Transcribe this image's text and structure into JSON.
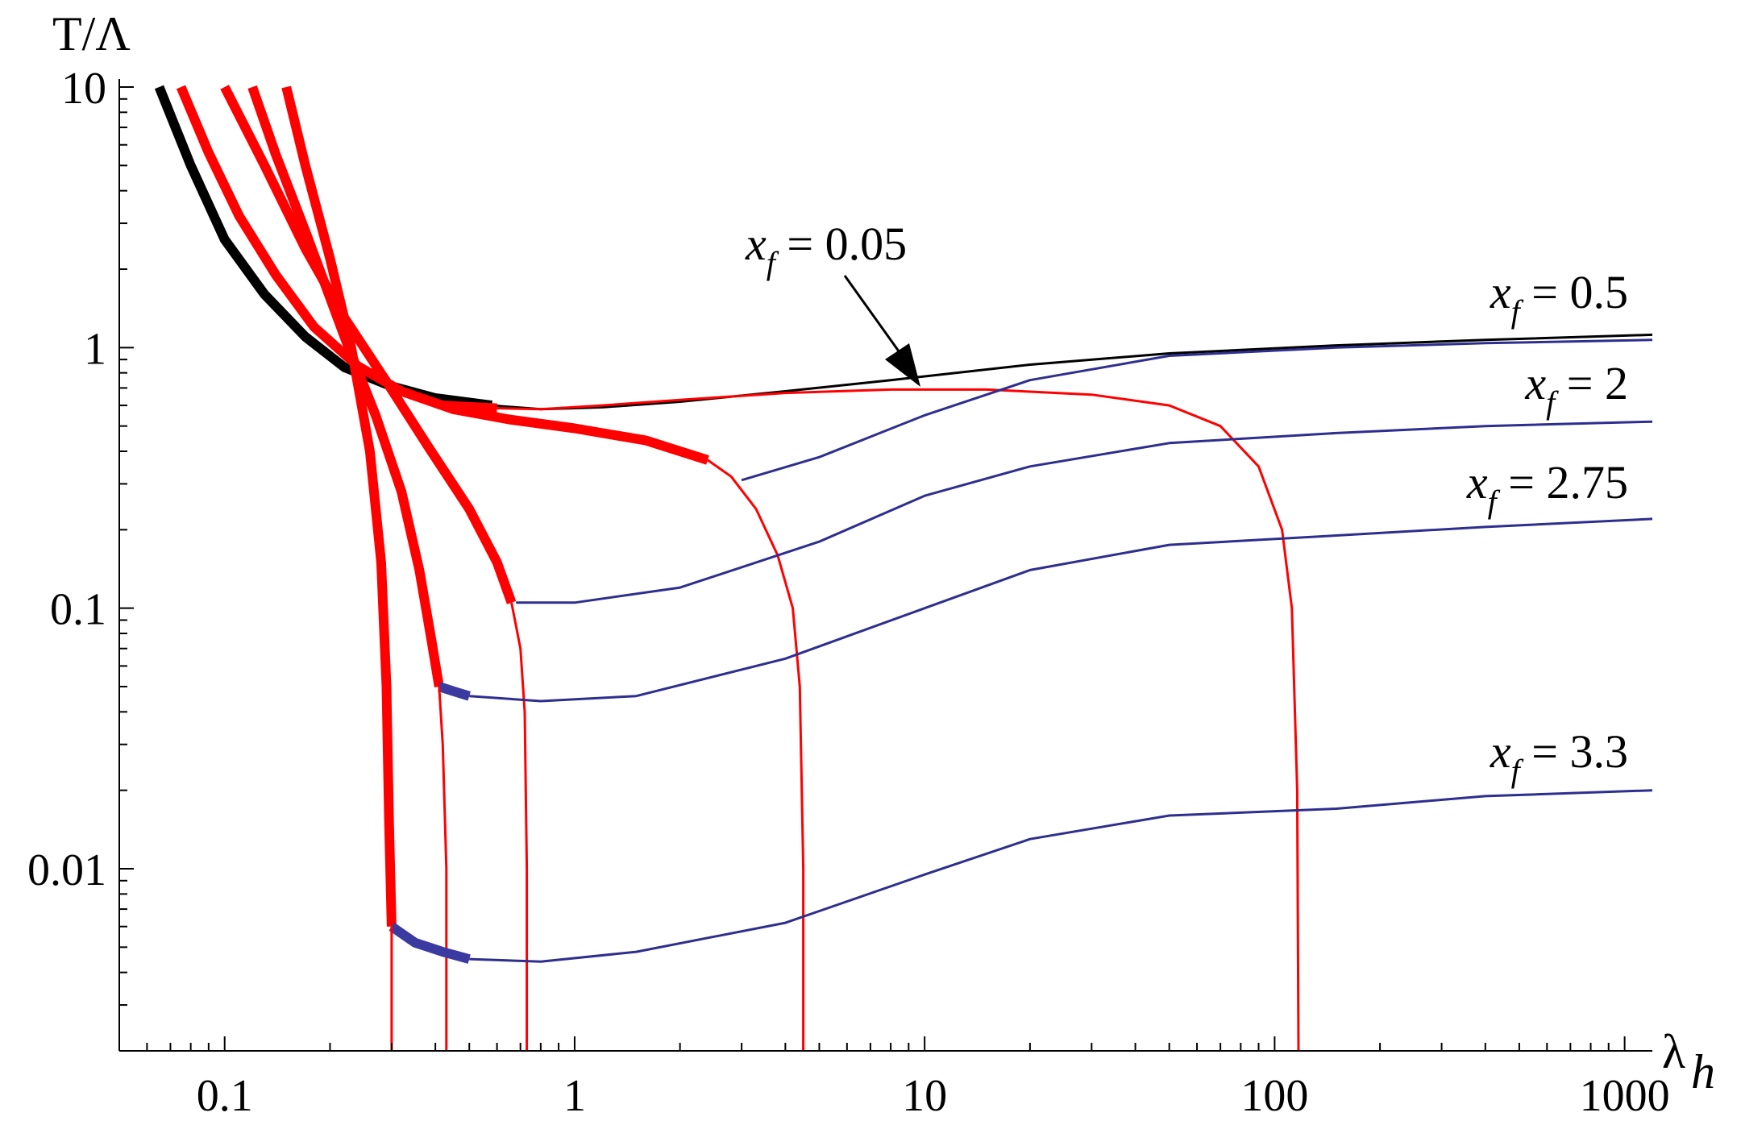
{
  "chart_data": {
    "type": "line",
    "title": "",
    "xlabel": "λ",
    "xlabel_sub": "h",
    "ylabel": "T/Λ",
    "xscale": "log",
    "yscale": "log",
    "xlim": [
      0.05,
      1200
    ],
    "ylim": [
      0.002,
      10
    ],
    "x_ticks": [
      {
        "value": 0.1,
        "label": "0.1"
      },
      {
        "value": 1,
        "label": "1"
      },
      {
        "value": 10,
        "label": "10"
      },
      {
        "value": 100,
        "label": "100"
      },
      {
        "value": 1000,
        "label": "1000"
      }
    ],
    "y_ticks": [
      {
        "value": 10,
        "label": "10"
      },
      {
        "value": 1,
        "label": "1"
      },
      {
        "value": 0.1,
        "label": "0.1"
      },
      {
        "value": 0.01,
        "label": "0.01"
      }
    ],
    "grid": false,
    "legend": "none",
    "colors": {
      "black": "#000000",
      "red": "#ff0000",
      "blue": "#2e2e8f",
      "blue_thick": "#3a3aa0"
    },
    "annotations": [
      {
        "label": "x",
        "sub": "f",
        "text": " = 0.05",
        "arrow": true
      },
      {
        "label": "x",
        "sub": "f",
        "text": " = 0.5"
      },
      {
        "label": "x",
        "sub": "f",
        "text": " = 2"
      },
      {
        "label": "x",
        "sub": "f",
        "text": " = 2.75"
      },
      {
        "label": "x",
        "sub": "f",
        "text": " = 3.3"
      }
    ],
    "series": [
      {
        "color": "black",
        "width": 12,
        "points": [
          [
            0.065,
            10
          ],
          [
            0.08,
            5
          ],
          [
            0.1,
            2.6
          ],
          [
            0.13,
            1.6
          ],
          [
            0.17,
            1.1
          ],
          [
            0.22,
            0.84
          ],
          [
            0.3,
            0.71
          ],
          [
            0.4,
            0.64
          ],
          [
            0.58,
            0.6
          ]
        ]
      },
      {
        "color": "black",
        "width": 3,
        "points": [
          [
            0.58,
            0.6
          ],
          [
            0.8,
            0.58
          ],
          [
            1.2,
            0.59
          ],
          [
            2,
            0.62
          ],
          [
            4,
            0.68
          ],
          [
            8,
            0.75
          ],
          [
            20,
            0.86
          ],
          [
            50,
            0.95
          ],
          [
            150,
            1.02
          ],
          [
            400,
            1.07
          ],
          [
            1200,
            1.12
          ]
        ]
      },
      {
        "color": "red",
        "width": 12,
        "points": [
          [
            0.075,
            10
          ],
          [
            0.09,
            5.6
          ],
          [
            0.11,
            3.2
          ],
          [
            0.14,
            1.9
          ],
          [
            0.18,
            1.2
          ],
          [
            0.24,
            0.85
          ],
          [
            0.32,
            0.68
          ],
          [
            0.45,
            0.58
          ],
          [
            0.65,
            0.53
          ],
          [
            1,
            0.49
          ],
          [
            1.6,
            0.44
          ],
          [
            2.4,
            0.37
          ]
        ]
      },
      {
        "color": "red",
        "width": 12,
        "points": [
          [
            0.42,
            0.6
          ],
          [
            0.6,
            0.585
          ]
        ]
      },
      {
        "color": "red",
        "width": 3,
        "points": [
          [
            0.6,
            0.585
          ],
          [
            0.8,
            0.58
          ],
          [
            1.2,
            0.6
          ],
          [
            2,
            0.63
          ],
          [
            4,
            0.67
          ],
          [
            8,
            0.69
          ],
          [
            15,
            0.69
          ],
          [
            30,
            0.66
          ],
          [
            50,
            0.6
          ],
          [
            70,
            0.5
          ],
          [
            90,
            0.35
          ],
          [
            105,
            0.2
          ],
          [
            112,
            0.1
          ],
          [
            116,
            0.02
          ],
          [
            117,
            0.002
          ]
        ]
      },
      {
        "color": "red",
        "width": 3,
        "points": [
          [
            2.4,
            0.37
          ],
          [
            2.8,
            0.32
          ],
          [
            3.3,
            0.24
          ],
          [
            3.8,
            0.16
          ],
          [
            4.2,
            0.1
          ],
          [
            4.4,
            0.05
          ],
          [
            4.5,
            0.01
          ],
          [
            4.5,
            0.002
          ]
        ]
      },
      {
        "color": "blue",
        "width": 3,
        "points": [
          [
            3,
            0.31
          ],
          [
            5,
            0.38
          ],
          [
            10,
            0.55
          ],
          [
            20,
            0.75
          ],
          [
            50,
            0.93
          ],
          [
            150,
            1.0
          ],
          [
            400,
            1.04
          ],
          [
            1200,
            1.07
          ]
        ]
      },
      {
        "color": "red",
        "width": 12,
        "points": [
          [
            0.1,
            10
          ],
          [
            0.13,
            5
          ],
          [
            0.17,
            2.4
          ],
          [
            0.22,
            1.3
          ],
          [
            0.29,
            0.74
          ],
          [
            0.38,
            0.42
          ],
          [
            0.5,
            0.24
          ],
          [
            0.6,
            0.15
          ],
          [
            0.66,
            0.105
          ]
        ]
      },
      {
        "color": "red",
        "width": 3,
        "points": [
          [
            0.66,
            0.105
          ],
          [
            0.7,
            0.07
          ],
          [
            0.72,
            0.04
          ],
          [
            0.73,
            0.01
          ],
          [
            0.73,
            0.002
          ]
        ]
      },
      {
        "color": "blue",
        "width": 3,
        "points": [
          [
            0.68,
            0.105
          ],
          [
            1,
            0.105
          ],
          [
            2,
            0.12
          ],
          [
            5,
            0.18
          ],
          [
            10,
            0.27
          ],
          [
            20,
            0.35
          ],
          [
            50,
            0.43
          ],
          [
            150,
            0.47
          ],
          [
            400,
            0.5
          ],
          [
            1200,
            0.52
          ]
        ]
      },
      {
        "color": "red",
        "width": 12,
        "points": [
          [
            0.12,
            10
          ],
          [
            0.14,
            5.5
          ],
          [
            0.17,
            2.8
          ],
          [
            0.22,
            1.1
          ],
          [
            0.27,
            0.55
          ],
          [
            0.32,
            0.28
          ],
          [
            0.36,
            0.14
          ],
          [
            0.39,
            0.075
          ],
          [
            0.41,
            0.05
          ]
        ]
      },
      {
        "color": "blue_thick",
        "width": 12,
        "points": [
          [
            0.41,
            0.05
          ],
          [
            0.45,
            0.048
          ],
          [
            0.5,
            0.046
          ]
        ]
      },
      {
        "color": "red",
        "width": 3,
        "points": [
          [
            0.41,
            0.05
          ],
          [
            0.42,
            0.03
          ],
          [
            0.43,
            0.01
          ],
          [
            0.43,
            0.002
          ]
        ]
      },
      {
        "color": "blue",
        "width": 3,
        "points": [
          [
            0.5,
            0.046
          ],
          [
            0.8,
            0.044
          ],
          [
            1.5,
            0.046
          ],
          [
            4,
            0.064
          ],
          [
            10,
            0.1
          ],
          [
            20,
            0.14
          ],
          [
            50,
            0.175
          ],
          [
            150,
            0.19
          ],
          [
            400,
            0.205
          ],
          [
            1200,
            0.22
          ]
        ]
      },
      {
        "color": "red",
        "width": 12,
        "points": [
          [
            0.15,
            10
          ],
          [
            0.17,
            5
          ],
          [
            0.2,
            2.2
          ],
          [
            0.23,
            1.0
          ],
          [
            0.26,
            0.4
          ],
          [
            0.28,
            0.15
          ],
          [
            0.29,
            0.05
          ],
          [
            0.295,
            0.015
          ],
          [
            0.3,
            0.006
          ]
        ]
      },
      {
        "color": "blue_thick",
        "width": 12,
        "points": [
          [
            0.3,
            0.006
          ],
          [
            0.35,
            0.0052
          ],
          [
            0.42,
            0.0048
          ],
          [
            0.5,
            0.0045
          ]
        ]
      },
      {
        "color": "red",
        "width": 3,
        "points": [
          [
            0.3,
            0.006
          ],
          [
            0.3,
            0.002
          ]
        ]
      },
      {
        "color": "blue",
        "width": 3,
        "points": [
          [
            0.5,
            0.0045
          ],
          [
            0.8,
            0.0044
          ],
          [
            1.5,
            0.0048
          ],
          [
            4,
            0.0062
          ],
          [
            10,
            0.0095
          ],
          [
            20,
            0.013
          ],
          [
            50,
            0.016
          ],
          [
            150,
            0.017
          ],
          [
            400,
            0.019
          ],
          [
            1200,
            0.02
          ]
        ]
      }
    ]
  }
}
